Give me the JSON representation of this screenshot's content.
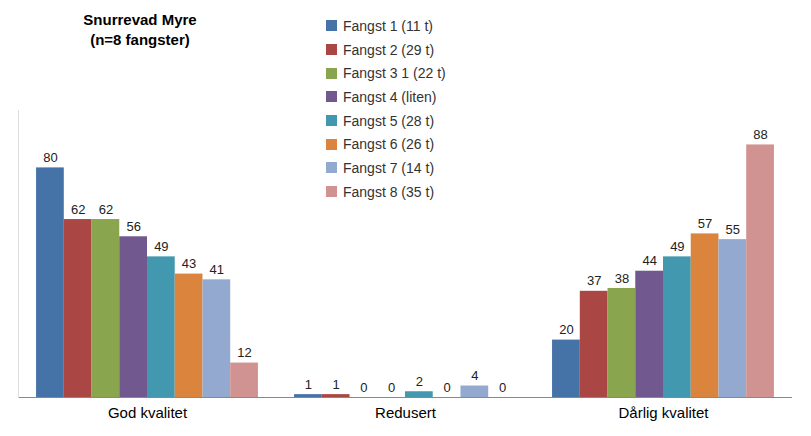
{
  "chart_data": {
    "type": "bar",
    "title": "Snurrevad Myre",
    "subtitle": "(n=8 fangster)",
    "categories": [
      "God kvalitet",
      "Redusert",
      "Dårlig kvalitet"
    ],
    "series": [
      {
        "name": "Fangst 1 (11 t)",
        "color": "#4572A7",
        "values": [
          80,
          1,
          20
        ]
      },
      {
        "name": "Fangst 2 (29 t)",
        "color": "#AA4643",
        "values": [
          62,
          1,
          37
        ]
      },
      {
        "name": "Fangst 3 1 (22 t)",
        "color": "#89A54E",
        "values": [
          62,
          0,
          38
        ]
      },
      {
        "name": "Fangst 4 (liten)",
        "color": "#71588F",
        "values": [
          56,
          0,
          44
        ]
      },
      {
        "name": "Fangst 5 (28 t)",
        "color": "#4198AF",
        "values": [
          49,
          2,
          49
        ]
      },
      {
        "name": "Fangst 6 (26 t)",
        "color": "#DB843D",
        "values": [
          43,
          0,
          57
        ]
      },
      {
        "name": "Fangst 7 (14 t)",
        "color": "#93A9CF",
        "values": [
          41,
          4,
          55
        ]
      },
      {
        "name": "Fangst 8 (35 t)",
        "color": "#D19392",
        "values": [
          12,
          0,
          88
        ]
      }
    ],
    "ylim": [
      0,
      100
    ],
    "yticks": [],
    "grid": false,
    "legend": "top",
    "data_labels": true,
    "tick_labels": "x"
  }
}
